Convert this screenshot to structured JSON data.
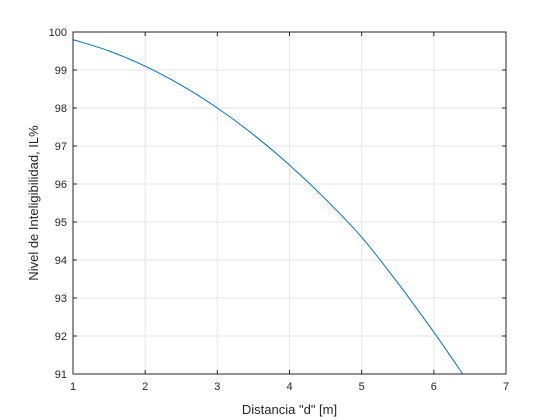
{
  "chart_data": {
    "type": "line",
    "title": "",
    "xlabel": "Distancia \"d\" [m]",
    "ylabel": "Nivel de Inteligibilidad, IL%",
    "xlim": [
      1,
      7
    ],
    "ylim": [
      91,
      100
    ],
    "xticks": [
      "1",
      "2",
      "3",
      "4",
      "5",
      "6",
      "7"
    ],
    "yticks": [
      "91",
      "92",
      "93",
      "94",
      "95",
      "96",
      "97",
      "98",
      "99",
      "100"
    ],
    "grid": true,
    "series": [
      {
        "color": "#0072bd",
        "x": [
          1.0,
          1.5,
          2.0,
          2.5,
          3.0,
          3.5,
          4.0,
          4.5,
          5.0,
          5.5,
          6.0,
          6.4
        ],
        "y": [
          99.8,
          99.5,
          99.1,
          98.6,
          98.0,
          97.3,
          96.5,
          95.6,
          94.6,
          93.4,
          92.1,
          91.0
        ]
      }
    ]
  }
}
